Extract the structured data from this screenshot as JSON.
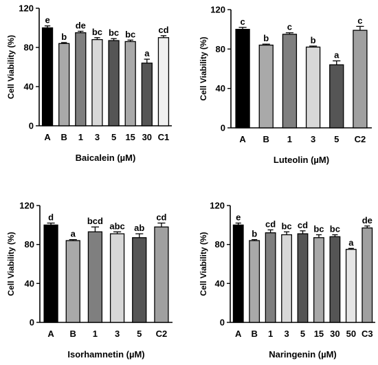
{
  "figure": {
    "bar_colors": {
      "A": "#000000",
      "B": "#a9a9a9",
      "mid": "#7f7f7f",
      "light": "#d8d8d8",
      "dark": "#555555",
      "control": "#c8c8c8"
    }
  },
  "chart_data": [
    {
      "type": "bar",
      "xlabel": "Baicalein (µM)",
      "ylabel": "Cell Viability (%)",
      "ylim": [
        0,
        120
      ],
      "yticks": [
        0,
        40,
        80,
        120
      ],
      "categories": [
        "A",
        "B",
        "1",
        "3",
        "5",
        "15",
        "30",
        "C1"
      ],
      "values": [
        100,
        84,
        95,
        88,
        87,
        86,
        64,
        90
      ],
      "errors": [
        2,
        1,
        1.5,
        2,
        2,
        1.5,
        4,
        2
      ],
      "significance": [
        "e",
        "b",
        "de",
        "bc",
        "bc",
        "bc",
        "a",
        "cd"
      ],
      "colors": [
        "#000000",
        "#a9a9a9",
        "#7f7f7f",
        "#d8d8d8",
        "#555555",
        "#a9a9a9",
        "#555555",
        "#f0f0f0"
      ]
    },
    {
      "type": "bar",
      "xlabel": "Luteolin (µM)",
      "ylabel": "Cell Viability (%)",
      "ylim": [
        0,
        120
      ],
      "yticks": [
        0,
        40,
        80,
        120
      ],
      "categories": [
        "A",
        "B",
        "1",
        "3",
        "5",
        "C2"
      ],
      "values": [
        100,
        84,
        95,
        82,
        64,
        99
      ],
      "errors": [
        2,
        1,
        1.5,
        1,
        4,
        4
      ],
      "significance": [
        "c",
        "b",
        "c",
        "b",
        "a",
        "c"
      ],
      "colors": [
        "#000000",
        "#a9a9a9",
        "#7f7f7f",
        "#d8d8d8",
        "#555555",
        "#a0a0a0"
      ]
    },
    {
      "type": "bar",
      "xlabel": "Isorhamnetin (µM)",
      "ylabel": "Cell Viability (%)",
      "ylim": [
        0,
        120
      ],
      "yticks": [
        0,
        40,
        80,
        120
      ],
      "categories": [
        "A",
        "B",
        "1",
        "3",
        "5",
        "C2"
      ],
      "values": [
        100,
        84,
        93,
        91,
        87,
        98
      ],
      "errors": [
        2,
        1,
        5,
        2,
        4,
        4
      ],
      "significance": [
        "d",
        "a",
        "bcd",
        "abc",
        "ab",
        "cd"
      ],
      "colors": [
        "#000000",
        "#a9a9a9",
        "#7f7f7f",
        "#d8d8d8",
        "#555555",
        "#a0a0a0"
      ]
    },
    {
      "type": "bar",
      "xlabel": "Naringenin (µM)",
      "ylabel": "Cell Viability (%)",
      "ylim": [
        0,
        120
      ],
      "yticks": [
        0,
        40,
        80,
        120
      ],
      "categories": [
        "A",
        "B",
        "1",
        "3",
        "5",
        "15",
        "30",
        "50",
        "C3"
      ],
      "values": [
        100,
        84,
        92,
        90,
        91,
        87,
        88,
        75,
        97
      ],
      "errors": [
        2,
        1,
        3,
        3,
        3,
        3,
        2,
        1,
        2
      ],
      "significance": [
        "e",
        "b",
        "cd",
        "bc",
        "cd",
        "bc",
        "bc",
        "a",
        "de"
      ],
      "colors": [
        "#000000",
        "#a9a9a9",
        "#7f7f7f",
        "#d8d8d8",
        "#555555",
        "#a9a9a9",
        "#555555",
        "#e6e6e6",
        "#a0a0a0"
      ]
    }
  ]
}
